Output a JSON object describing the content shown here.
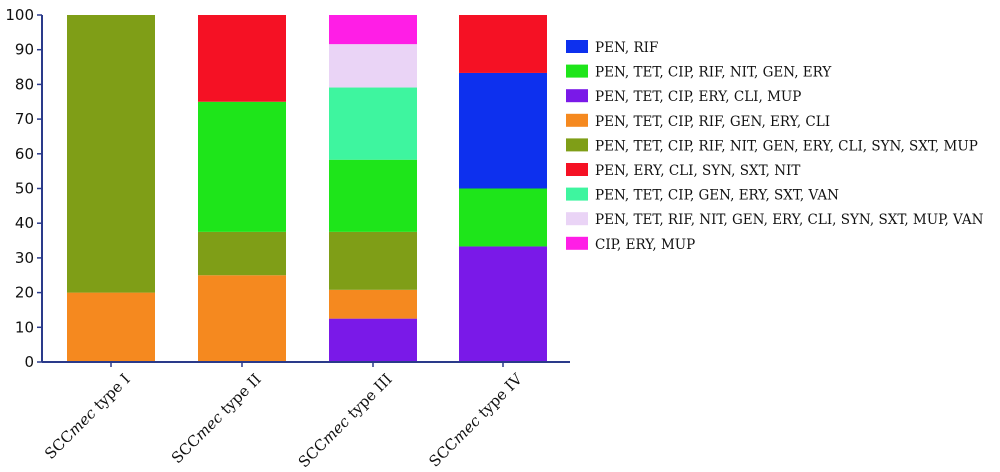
{
  "chart_data": {
    "type": "bar",
    "stacked": true,
    "categories": [
      {
        "prefix": "SCC",
        "italic": "mec",
        "suffix": " type I"
      },
      {
        "prefix": "SCC",
        "italic": "mec",
        "suffix": " type II"
      },
      {
        "prefix": "SCC",
        "italic": "mec",
        "suffix": " type III"
      },
      {
        "prefix": "SCC",
        "italic": "mec",
        "suffix": " type IV"
      }
    ],
    "ylim": [
      0,
      100
    ],
    "yticks": [
      0,
      10,
      20,
      30,
      40,
      50,
      60,
      70,
      80,
      90,
      100
    ],
    "legend_position": "right",
    "series": [
      {
        "name": "PEN, TET, CIP, ERY, CLI, MUP",
        "color": "#7a19e8",
        "values": [
          0,
          0,
          12.5,
          33.3
        ]
      },
      {
        "name": "PEN, TET, CIP, RIF, GEN, ERY, CLI",
        "color": "#f5891f",
        "values": [
          20,
          25,
          8.3,
          0
        ]
      },
      {
        "name": "PEN, TET, CIP, RIF, NIT, GEN, ERY, CLI, SYN, SXT, MUP",
        "color": "#7f9e17",
        "values": [
          80,
          12.5,
          16.7,
          0
        ]
      },
      {
        "name": "PEN, TET, CIP, RIF, NIT, GEN, ERY",
        "color": "#1ee51a",
        "values": [
          0,
          37.5,
          20.8,
          16.7
        ]
      },
      {
        "name": "PEN, TET, CIP, GEN, ERY, SXT, VAN",
        "color": "#3ef59f",
        "values": [
          0,
          0,
          20.8,
          0
        ]
      },
      {
        "name": "PEN, TET, RIF, NIT, GEN, ERY, CLI, SYN, SXT, MUP, VAN",
        "color": "#ead4f6",
        "values": [
          0,
          0,
          12.5,
          0
        ]
      },
      {
        "name": "CIP, ERY, MUP",
        "color": "#ff1ee6",
        "values": [
          0,
          0,
          8.4,
          0
        ]
      },
      {
        "name": "PEN, RIF",
        "color": "#0d30ee",
        "values": [
          0,
          0,
          0,
          33.3
        ]
      },
      {
        "name": "PEN, ERY, CLI, SYN, SXT, NIT",
        "color": "#f51124",
        "values": [
          0,
          25,
          0,
          16.7
        ]
      }
    ],
    "legend_order": [
      "PEN, RIF",
      "PEN, TET, CIP, RIF, NIT, GEN, ERY",
      "PEN, TET, CIP, ERY, CLI, MUP",
      "PEN, TET, CIP, RIF, GEN, ERY, CLI",
      "PEN, TET, CIP, RIF, NIT, GEN, ERY, CLI, SYN, SXT, MUP",
      "PEN, ERY, CLI, SYN, SXT, NIT",
      "PEN, TET, CIP, GEN, ERY, SXT, VAN",
      "PEN, TET, RIF, NIT, GEN, ERY, CLI, SYN, SXT, MUP, VAN",
      "CIP, ERY, MUP"
    ]
  }
}
